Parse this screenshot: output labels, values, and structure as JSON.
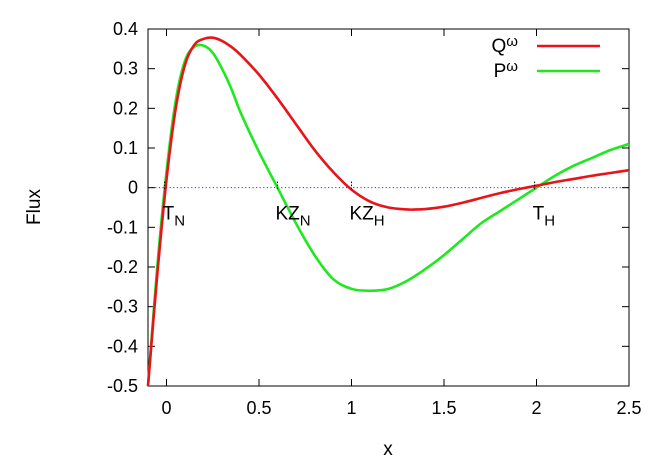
{
  "chart_data": {
    "type": "line",
    "xlabel": "x",
    "ylabel": "Flux",
    "xlim": [
      -0.1,
      2.5
    ],
    "ylim": [
      -0.5,
      0.4
    ],
    "x_ticks": [
      "0",
      "0.5",
      "1",
      "1.5",
      "2",
      "2.5"
    ],
    "y_ticks": [
      "0.4",
      "0.3",
      "0.2",
      "0.1",
      "0",
      "-0.1",
      "-0.2",
      "-0.3",
      "-0.4",
      "-0.5"
    ],
    "grid": false,
    "legend_position": "top-right",
    "zero_line": {
      "y": 0,
      "style": "dotted",
      "color": "#3a3ab8"
    },
    "series": [
      {
        "name_main": "Q",
        "name_sub": "ω",
        "color": "#e8141a",
        "x": [
          -0.1,
          -0.05,
          0,
          0.05,
          0.1,
          0.15,
          0.2,
          0.25,
          0.3,
          0.35,
          0.4,
          0.5,
          0.6,
          0.7,
          0.8,
          0.9,
          1.0,
          1.1,
          1.2,
          1.3,
          1.35,
          1.4,
          1.5,
          1.6,
          1.7,
          1.8,
          1.9,
          2.0,
          2.1,
          2.2,
          2.3,
          2.4,
          2.5
        ],
        "y": [
          -0.5,
          -0.22,
          0.02,
          0.2,
          0.31,
          0.36,
          0.375,
          0.378,
          0.37,
          0.355,
          0.335,
          0.285,
          0.225,
          0.16,
          0.095,
          0.04,
          -0.005,
          -0.035,
          -0.05,
          -0.055,
          -0.055,
          -0.054,
          -0.048,
          -0.038,
          -0.026,
          -0.014,
          -0.004,
          0.005,
          0.014,
          0.022,
          0.03,
          0.037,
          0.044
        ]
      },
      {
        "name_main": "P",
        "name_sub": "ω",
        "color": "#1ee81e",
        "x": [
          -0.1,
          -0.05,
          0,
          0.05,
          0.1,
          0.15,
          0.2,
          0.25,
          0.3,
          0.35,
          0.4,
          0.5,
          0.6,
          0.7,
          0.8,
          0.9,
          1.0,
          1.1,
          1.2,
          1.3,
          1.4,
          1.5,
          1.6,
          1.7,
          1.8,
          1.9,
          2.0,
          2.1,
          2.2,
          2.3,
          2.4,
          2.5
        ],
        "y": [
          -0.5,
          -0.2,
          0.04,
          0.22,
          0.32,
          0.355,
          0.358,
          0.34,
          0.3,
          0.25,
          0.19,
          0.09,
          0.0,
          -0.09,
          -0.17,
          -0.23,
          -0.255,
          -0.26,
          -0.255,
          -0.235,
          -0.205,
          -0.17,
          -0.13,
          -0.09,
          -0.06,
          -0.03,
          0.0,
          0.03,
          0.055,
          0.075,
          0.095,
          0.11
        ]
      }
    ],
    "annotations": [
      {
        "main": "T",
        "sub": "N",
        "x": -0.01
      },
      {
        "main": "KZ",
        "sub": "N",
        "x": 0.6
      },
      {
        "main": "KZ",
        "sub": "H",
        "x": 1.0
      },
      {
        "main": "T",
        "sub": "H",
        "x": 1.99
      }
    ]
  }
}
